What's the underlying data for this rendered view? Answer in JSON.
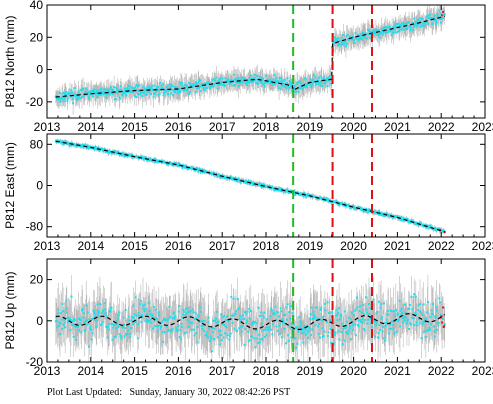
{
  "footer": {
    "label": "Plot Last Updated:",
    "datetime": "Sunday, January 30, 2022 08:42:26 PST"
  },
  "colors": {
    "observations": "#22ddee",
    "error_bars": "#b8b8b8",
    "model": "#000000",
    "recent": "#ee1111",
    "event_equipment": "#22bb22",
    "event_earthquake": "#dd1111"
  },
  "chart_data": [
    {
      "type": "scatter",
      "ylabel": "P812 North (mm)",
      "xlim": [
        2013,
        2023
      ],
      "ylim": [
        -30,
        40
      ],
      "xticks": [
        2013,
        2014,
        2015,
        2016,
        2017,
        2018,
        2019,
        2020,
        2021,
        2022,
        2023
      ],
      "yticks": [
        -20,
        0,
        20,
        40
      ],
      "grid": false,
      "series": [
        {
          "values": [
            [
              2013.2,
              -17
            ],
            [
              2014.0,
              -15
            ],
            [
              2015.0,
              -13
            ],
            [
              2016.0,
              -12
            ],
            [
              2017.0,
              -8
            ],
            [
              2017.8,
              -6
            ],
            [
              2018.6,
              -10
            ],
            [
              2018.6,
              -13
            ],
            [
              2019.0,
              -8
            ],
            [
              2019.5,
              -6
            ],
            [
              2019.5,
              16
            ],
            [
              2020.0,
              20
            ],
            [
              2020.5,
              23
            ],
            [
              2021.0,
              26
            ],
            [
              2021.5,
              29
            ],
            [
              2022.08,
              33
            ]
          ]
        }
      ],
      "events": [
        {
          "x": 2018.62,
          "color": "green"
        },
        {
          "x": 2019.52,
          "color": "red"
        },
        {
          "x": 2020.42,
          "color": "red"
        }
      ]
    },
    {
      "type": "scatter",
      "ylabel": "P812 East (mm)",
      "xlim": [
        2013,
        2023
      ],
      "ylim": [
        -100,
        100
      ],
      "xticks": [
        2013,
        2014,
        2015,
        2016,
        2017,
        2018,
        2019,
        2020,
        2021,
        2022,
        2023
      ],
      "yticks": [
        -80,
        0,
        80
      ],
      "grid": false,
      "series": [
        {
          "values": [
            [
              2013.2,
              86
            ],
            [
              2014.0,
              74
            ],
            [
              2015.0,
              56
            ],
            [
              2016.0,
              40
            ],
            [
              2017.0,
              18
            ],
            [
              2018.0,
              -2
            ],
            [
              2018.6,
              -13
            ],
            [
              2019.0,
              -20
            ],
            [
              2020.0,
              -42
            ],
            [
              2021.0,
              -62
            ],
            [
              2022.08,
              -90
            ]
          ]
        }
      ],
      "events": [
        {
          "x": 2018.62,
          "color": "green"
        },
        {
          "x": 2019.52,
          "color": "red"
        },
        {
          "x": 2020.42,
          "color": "red"
        }
      ]
    },
    {
      "type": "scatter",
      "ylabel": "P812 Up (mm)",
      "xlim": [
        2013,
        2023
      ],
      "ylim": [
        -20,
        30
      ],
      "xticks": [
        2013,
        2014,
        2015,
        2016,
        2017,
        2018,
        2019,
        2020,
        2021,
        2022,
        2023
      ],
      "yticks": [
        -20,
        0,
        20
      ],
      "grid": false,
      "series": [
        {
          "values": [
            [
              2013.2,
              0
            ],
            [
              2014.0,
              0
            ],
            [
              2015.0,
              0
            ],
            [
              2016.0,
              0
            ],
            [
              2017.0,
              -1
            ],
            [
              2018.0,
              -2
            ],
            [
              2019.0,
              -2
            ],
            [
              2020.0,
              0
            ],
            [
              2021.0,
              1
            ],
            [
              2022.08,
              2
            ]
          ]
        }
      ],
      "events": [
        {
          "x": 2018.62,
          "color": "green"
        },
        {
          "x": 2019.52,
          "color": "red"
        },
        {
          "x": 2020.42,
          "color": "red"
        }
      ]
    }
  ]
}
